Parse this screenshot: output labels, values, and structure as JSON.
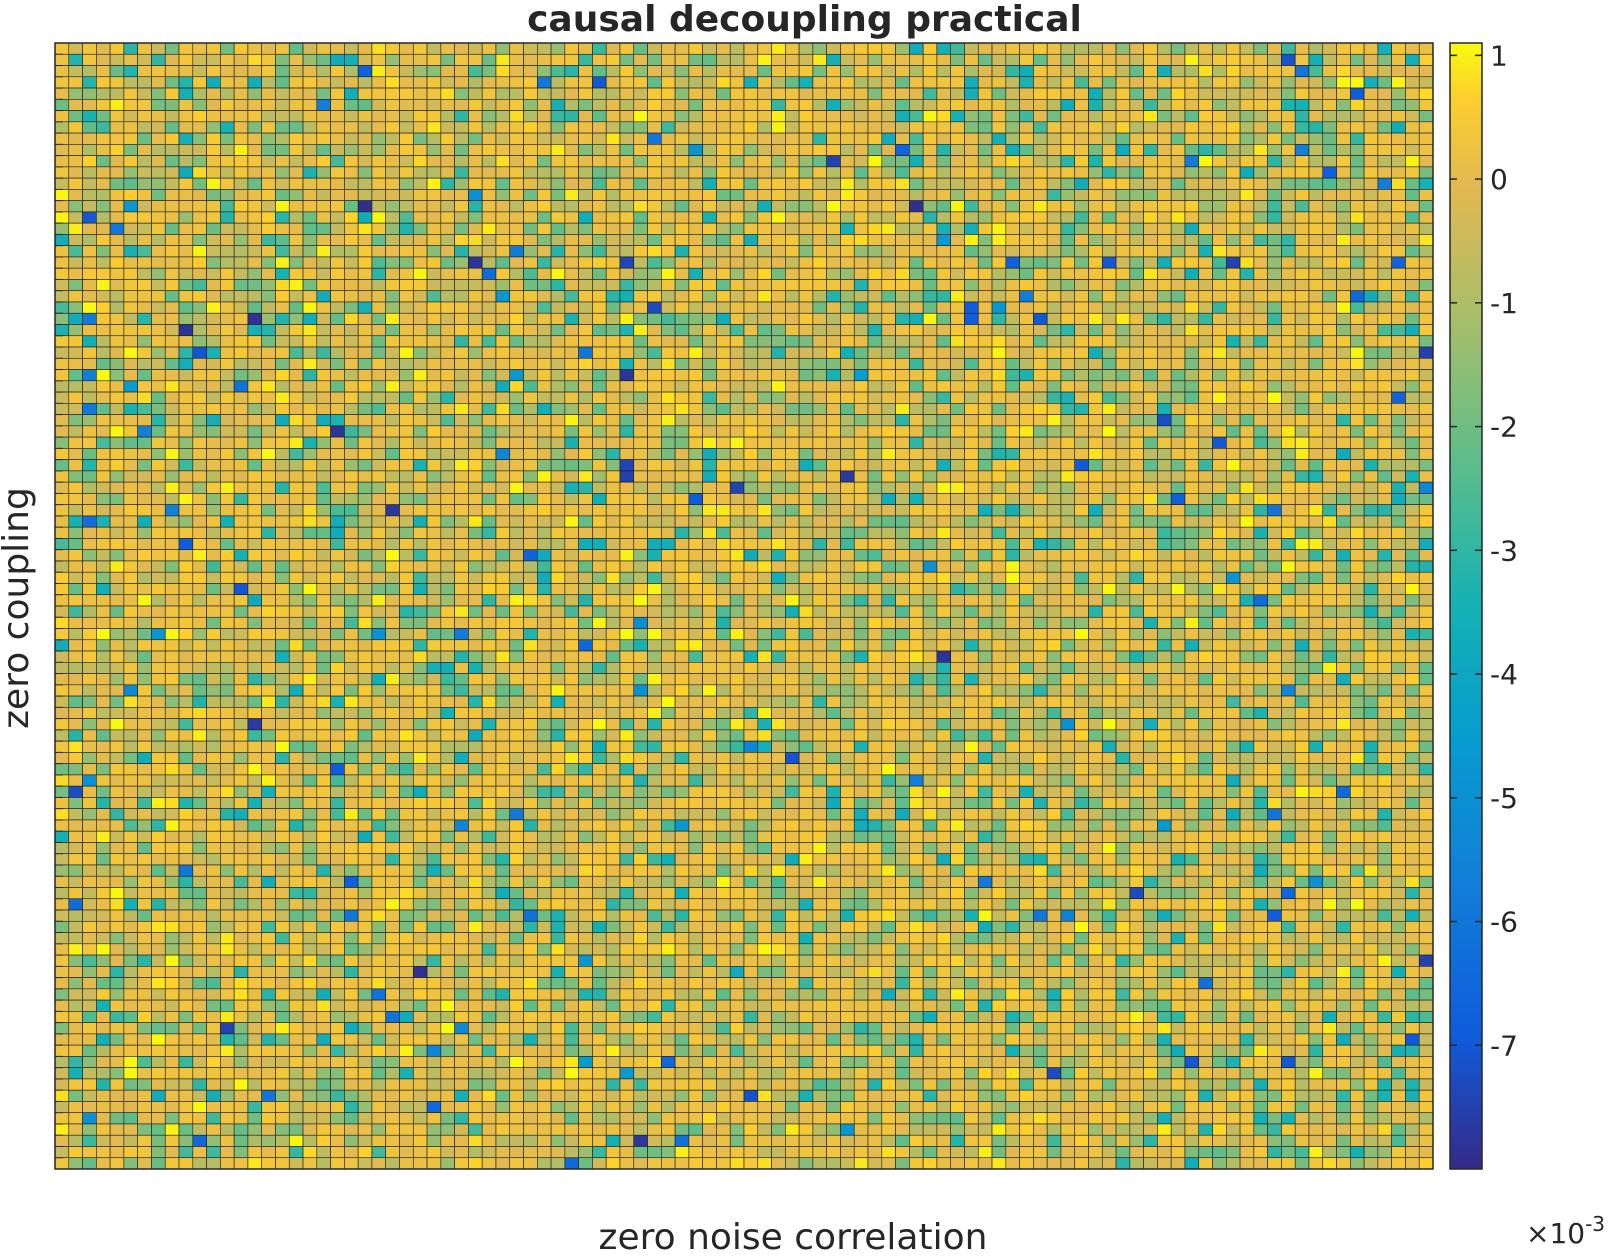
{
  "chart_data": {
    "type": "heatmap",
    "title": "causal decoupling practical",
    "xlabel": "zero noise correlation",
    "ylabel": "zero coupling",
    "colormap": "parula",
    "colorbar": {
      "location": "right",
      "ticks": [
        1,
        0,
        -1,
        -2,
        -3,
        -4,
        -5,
        -6,
        -7
      ],
      "tick_labels": [
        "1",
        "0",
        "-1",
        "-2",
        "-3",
        "-4",
        "-5",
        "-6",
        "-7"
      ],
      "range": [
        -8,
        1.1
      ],
      "exponent_label": "×10",
      "exponent": "-3"
    },
    "grid": {
      "rows": 100,
      "cols": 100,
      "cell_edges": true,
      "seed": 7,
      "value_distribution": "most cells between -2 and 1, sparse outliers down to -8"
    }
  }
}
